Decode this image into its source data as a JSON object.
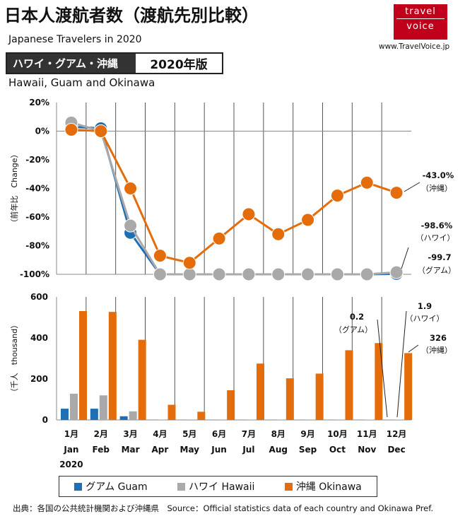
{
  "header": {
    "title": "日本人渡航者数（渡航先別比較）",
    "subtitle_en": "Japanese Travelers in 2020",
    "tag_regions": "ハワイ・グアム・沖縄",
    "tag_year": "2020年版",
    "regions_en": "Hawaii, Guam and Okinawa",
    "logo_line1": "travel",
    "logo_line2": "voice",
    "site_url": "www.TravelVoice.jp"
  },
  "source": "出典：各国の公共統計機関および沖縄県　Source：Official statistics data of each country and Okinawa Pref.",
  "colors": {
    "guam": "#1f6fb5",
    "hawaii": "#a9a9a9",
    "okinawa": "#e46c0a"
  },
  "chart_data": [
    {
      "type": "line",
      "ylabel": "（前年比　Change）",
      "ylim": [
        -100,
        20
      ],
      "yticks": [
        "20%",
        "0%",
        "-20%",
        "-40%",
        "-60%",
        "-80%",
        "-100%"
      ],
      "ytick_values": [
        20,
        0,
        -20,
        -40,
        -60,
        -80,
        -100
      ],
      "grid": "vertical",
      "categories": [
        "1月 Jan",
        "2月 Feb",
        "3月 Mar",
        "4月 Apr",
        "5月 May",
        "6月 Jun",
        "7月 Jul",
        "8月 Aug",
        "9月 Sep",
        "10月 Oct",
        "11月 Nov",
        "12月 Dec"
      ],
      "series": [
        {
          "name": "グアム Guam",
          "key": "guam",
          "values": [
            3,
            2,
            -71,
            -100,
            -100,
            -100,
            -100,
            -100,
            -100,
            -100,
            -100,
            -99.7
          ]
        },
        {
          "name": "ハワイ Hawaii",
          "key": "hawaii",
          "values": [
            6,
            0,
            -66,
            -100,
            -100,
            -100,
            -100,
            -100,
            -100,
            -100,
            -100,
            -98.6
          ]
        },
        {
          "name": "沖縄 Okinawa",
          "key": "okinawa",
          "values": [
            1,
            0,
            -40,
            -87,
            -92,
            -75,
            -58,
            -72,
            -62,
            -45,
            -36,
            -43.0
          ]
        }
      ],
      "annotations": [
        {
          "value": "-43.0%",
          "label": "（沖縄）"
        },
        {
          "value": "-98.6%",
          "label": "（ハワイ）"
        },
        {
          "value": "-99.7",
          "label": "（グアム）"
        }
      ]
    },
    {
      "type": "bar",
      "ylabel": "（千人　thousand）",
      "ylim": [
        0,
        600
      ],
      "yticks": [
        "600",
        "400",
        "200",
        "0"
      ],
      "ytick_values": [
        600,
        400,
        200,
        0
      ],
      "grid": "vertical",
      "categories_jp": [
        "1月",
        "2月",
        "3月",
        "4月",
        "5月",
        "6月",
        "7月",
        "8月",
        "9月",
        "10月",
        "11月",
        "12月"
      ],
      "categories_en": [
        "Jan",
        "Feb",
        "Mar",
        "Apr",
        "May",
        "Jun",
        "Jul",
        "Aug",
        "Sep",
        "Oct",
        "Nov",
        "Dec"
      ],
      "year_label": "2020",
      "series": [
        {
          "name": "グアム Guam",
          "key": "guam",
          "values": [
            55,
            55,
            18,
            0.5,
            0.3,
            0.2,
            0.3,
            0.3,
            0.3,
            0.2,
            0.3,
            0.2
          ]
        },
        {
          "name": "ハワイ Hawaii",
          "key": "hawaii",
          "values": [
            128,
            120,
            42,
            1,
            0.5,
            0.5,
            0.7,
            0.7,
            0.8,
            1,
            1.5,
            1.9
          ]
        },
        {
          "name": "沖縄 Okinawa",
          "key": "okinawa",
          "values": [
            531,
            527,
            391,
            74,
            40,
            145,
            275,
            203,
            226,
            340,
            375,
            326
          ]
        }
      ],
      "annotations": [
        {
          "value": "0.2",
          "label": "（グアム）"
        },
        {
          "value": "1.9",
          "label": "（ハワイ）"
        },
        {
          "value": "326",
          "label": "（沖縄）"
        }
      ]
    }
  ]
}
